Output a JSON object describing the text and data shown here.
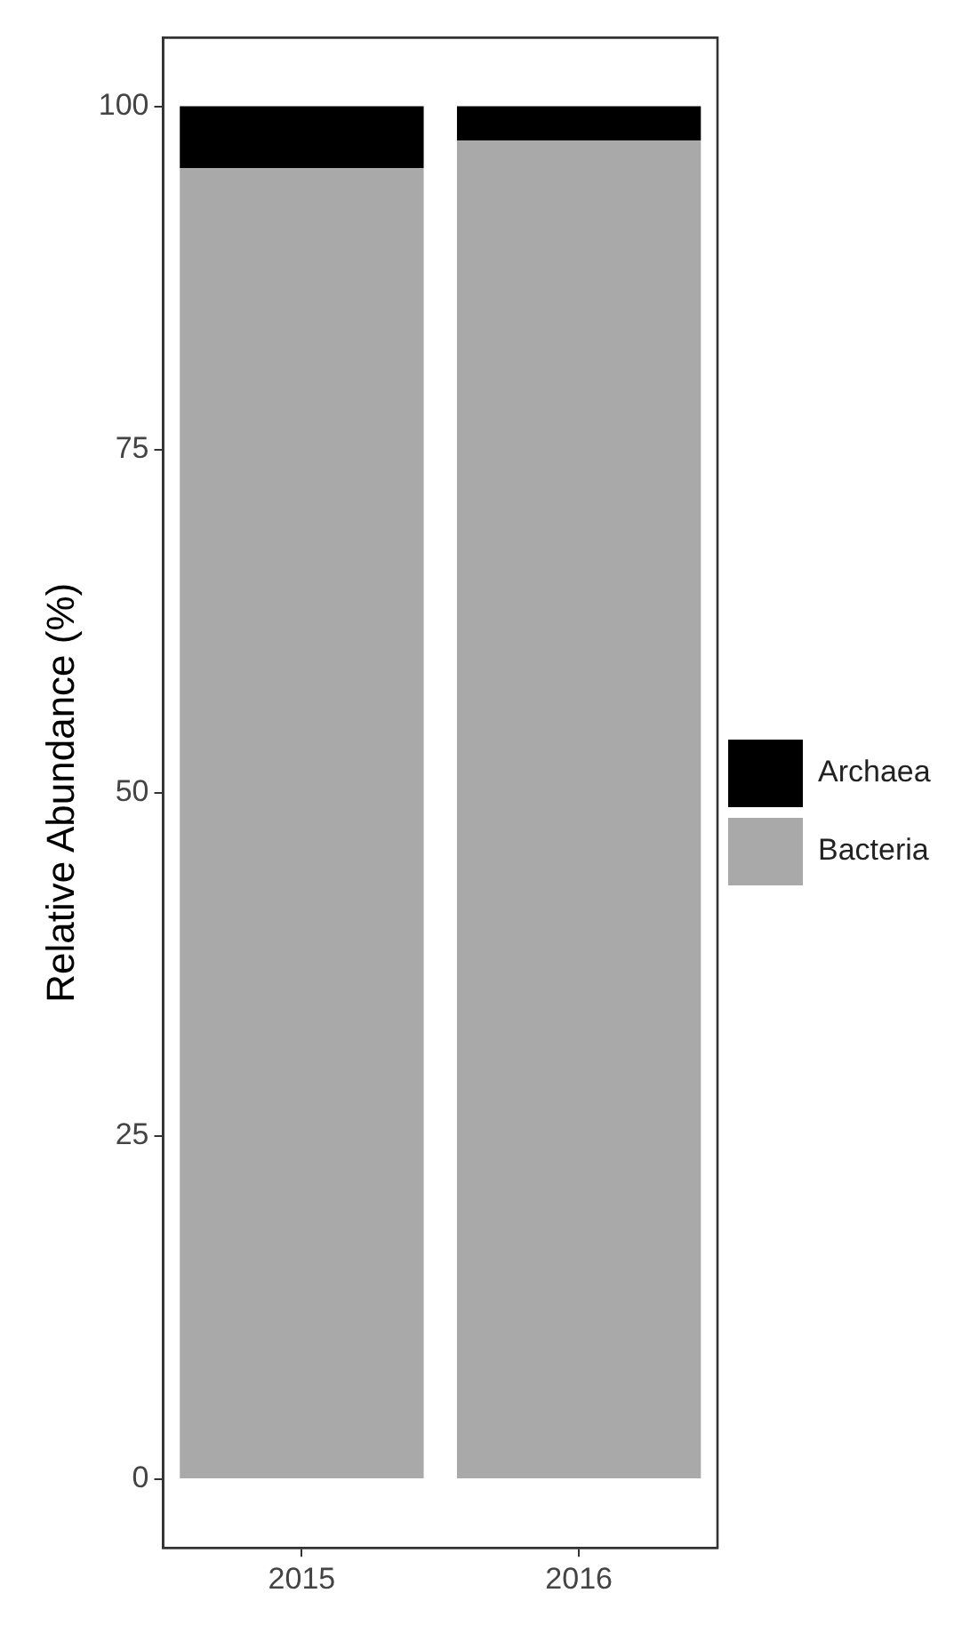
{
  "chart_data": {
    "type": "bar",
    "ylabel": "Relative Abundance (%)",
    "categories": [
      "2015",
      "2016"
    ],
    "stacked": true,
    "series": [
      {
        "name": "Bacteria",
        "color": "#a9a9a9",
        "values": [
          95.5,
          97.5
        ]
      },
      {
        "name": "Archaea",
        "color": "#000000",
        "values": [
          4.5,
          2.5
        ]
      }
    ],
    "ylim": [
      -5,
      105
    ],
    "yticks": [
      0,
      25,
      50,
      75,
      100
    ],
    "grid": false,
    "legend": "right"
  }
}
